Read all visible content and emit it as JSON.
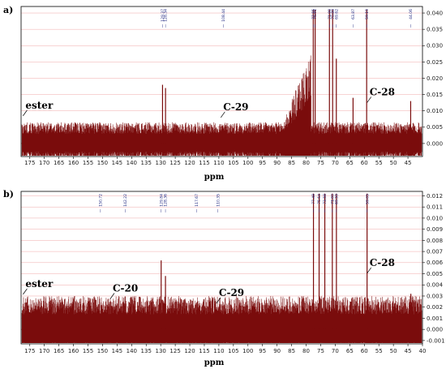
{
  "chart_data": [
    {
      "type": "line",
      "panel_letter": "a)",
      "xlabel": "ppm",
      "xlim": [
        178,
        40
      ],
      "ylim": [
        -0.004,
        0.042
      ],
      "x_ticks": [
        175,
        170,
        165,
        160,
        155,
        150,
        145,
        140,
        135,
        130,
        125,
        120,
        115,
        110,
        105,
        100,
        95,
        90,
        85,
        80,
        75,
        70,
        65,
        60,
        55,
        50,
        45
      ],
      "y_ticks": [
        "0.040",
        "0.035",
        "0.030",
        "0.025",
        "0.020",
        "0.015",
        "0.010",
        "0.005",
        "0.000"
      ],
      "y_tick_values": [
        0.04,
        0.035,
        0.03,
        0.025,
        0.02,
        0.015,
        0.01,
        0.005,
        0.0
      ],
      "peak_labels": [
        {
          "x": 129.37,
          "label": "129.37"
        },
        {
          "x": 128.34,
          "label": "128.34"
        },
        {
          "x": 108.44,
          "label": "108.44"
        },
        {
          "x": 77.55,
          "label": "77.55"
        },
        {
          "x": 76.91,
          "label": "76.91"
        },
        {
          "x": 71.99,
          "label": "71.99"
        },
        {
          "x": 70.89,
          "label": "70.89"
        },
        {
          "x": 69.62,
          "label": "69.62"
        },
        {
          "x": 63.87,
          "label": "63.87"
        },
        {
          "x": 59.19,
          "label": "59.19"
        },
        {
          "x": 44.06,
          "label": "44.06"
        }
      ],
      "annotations": [
        {
          "text": "ester",
          "x": 176.5,
          "y": 0.0107
        },
        {
          "text": "C-29",
          "x": 108.5,
          "y": 0.0102
        },
        {
          "text": "C-28",
          "x": 58.2,
          "y": 0.0148
        }
      ],
      "peaks": [
        {
          "x": 77.55,
          "y": 0.041
        },
        {
          "x": 76.91,
          "y": 0.041
        },
        {
          "x": 71.99,
          "y": 0.041
        },
        {
          "x": 70.89,
          "y": 0.041
        },
        {
          "x": 69.62,
          "y": 0.026
        },
        {
          "x": 63.87,
          "y": 0.014
        },
        {
          "x": 59.19,
          "y": 0.041
        },
        {
          "x": 129.37,
          "y": 0.018
        },
        {
          "x": 128.34,
          "y": 0.017
        },
        {
          "x": 44.06,
          "y": 0.013
        }
      ]
    },
    {
      "type": "line",
      "panel_letter": "b)",
      "xlabel": "ppm",
      "xlim": [
        178,
        40
      ],
      "ylim": [
        -0.0013,
        0.0124
      ],
      "x_ticks": [
        175,
        170,
        165,
        160,
        155,
        150,
        145,
        140,
        135,
        130,
        125,
        120,
        115,
        110,
        105,
        100,
        95,
        90,
        85,
        80,
        75,
        70,
        65,
        60,
        55,
        50,
        45,
        40
      ],
      "y_ticks": [
        "0.012",
        "0.011",
        "0.010",
        "0.009",
        "0.008",
        "0.007",
        "0.006",
        "0.005",
        "0.004",
        "0.003",
        "0.002",
        "0.001",
        "0.000",
        "-0.001"
      ],
      "y_tick_values": [
        0.012,
        0.011,
        0.01,
        0.009,
        0.008,
        0.007,
        0.006,
        0.005,
        0.004,
        0.003,
        0.002,
        0.001,
        0.0,
        -0.001
      ],
      "peak_labels": [
        {
          "x": 150.72,
          "label": "150.72"
        },
        {
          "x": 142.22,
          "label": "142.22"
        },
        {
          "x": 129.84,
          "label": "129.84"
        },
        {
          "x": 128.36,
          "label": "128.36"
        },
        {
          "x": 117.67,
          "label": "117.67"
        },
        {
          "x": 110.35,
          "label": "110.35"
        },
        {
          "x": 77.48,
          "label": "77.48"
        },
        {
          "x": 75.54,
          "label": "75.54"
        },
        {
          "x": 73.58,
          "label": "73.58"
        },
        {
          "x": 71.0,
          "label": "71.00"
        },
        {
          "x": 69.59,
          "label": "69.59"
        },
        {
          "x": 59.05,
          "label": "59.05"
        }
      ],
      "annotations": [
        {
          "text": "ester",
          "x": 176.5,
          "y": 0.0038
        },
        {
          "text": "C-20",
          "x": 146.5,
          "y": 0.0034
        },
        {
          "text": "C-29",
          "x": 110.0,
          "y": 0.003
        },
        {
          "text": "C-28",
          "x": 58.2,
          "y": 0.0057
        }
      ],
      "peaks": [
        {
          "x": 77.48,
          "y": 0.0122
        },
        {
          "x": 75.54,
          "y": 0.0122
        },
        {
          "x": 73.58,
          "y": 0.0122
        },
        {
          "x": 71.0,
          "y": 0.0122
        },
        {
          "x": 69.59,
          "y": 0.0122
        },
        {
          "x": 59.05,
          "y": 0.0122
        },
        {
          "x": 129.84,
          "y": 0.0062
        },
        {
          "x": 128.36,
          "y": 0.0048
        },
        {
          "x": 44.0,
          "y": 0.0032
        }
      ]
    }
  ],
  "colors": {
    "trace": "#7a0c0c",
    "grid": "#f0a8a8",
    "peak_label": "#1a237e",
    "annotation_line": "#000000"
  }
}
